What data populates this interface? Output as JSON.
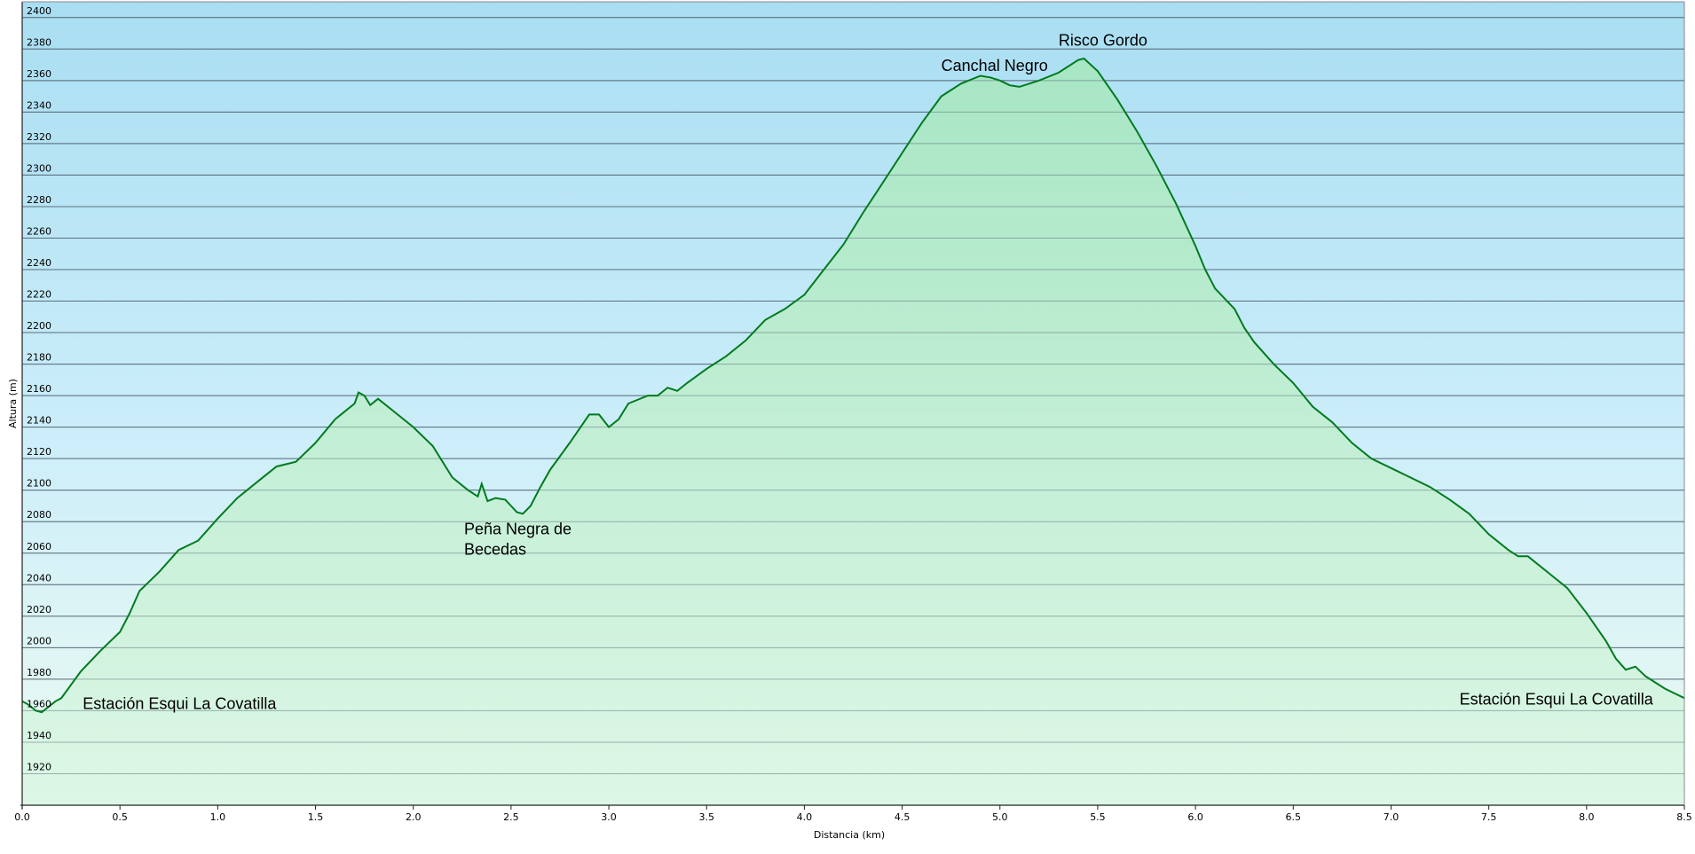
{
  "chart_data": {
    "type": "area",
    "title": "",
    "xlabel": "Distancia  (km)",
    "ylabel": "Altura (m)",
    "xlim": [
      0,
      8.5
    ],
    "ylim": [
      1900,
      2410
    ],
    "x_ticks": [
      0.0,
      0.5,
      1.0,
      1.5,
      2.0,
      2.5,
      3.0,
      3.5,
      4.0,
      4.5,
      5.0,
      5.5,
      6.0,
      6.5,
      7.0,
      7.5,
      8.0,
      8.5
    ],
    "x_tick_labels": [
      "0.0",
      "0.5",
      "1.0",
      "1.5",
      "2.0",
      "2.5",
      "3.0",
      "3.5",
      "4.0",
      "4.5",
      "5.0",
      "5.5",
      "6.0",
      "6.5",
      "7.0",
      "7.5",
      "8.0",
      "8.5"
    ],
    "y_ticks": [
      1920,
      1940,
      1960,
      1980,
      2000,
      2020,
      2040,
      2060,
      2080,
      2100,
      2120,
      2140,
      2160,
      2180,
      2200,
      2220,
      2240,
      2260,
      2280,
      2300,
      2320,
      2340,
      2360,
      2380,
      2400
    ],
    "y_tick_labels": [
      "1920",
      "1940",
      "1960",
      "1980",
      "2000",
      "2020",
      "2040",
      "2060",
      "2080",
      "2100",
      "2120",
      "2140",
      "2160",
      "2180",
      "2200",
      "2220",
      "2240",
      "2260",
      "2280",
      "2300",
      "2320",
      "2340",
      "2360",
      "2380",
      "2400"
    ],
    "grid": true,
    "colors": {
      "line": "#007a1e",
      "fill": "#aee8c6",
      "bg_top": "#aee2f4",
      "bg_bottom": "#e9fbf0",
      "grid": "#4a5a68"
    },
    "series": [
      {
        "x": [
          0.0,
          0.03,
          0.07,
          0.1,
          0.13,
          0.17,
          0.2,
          0.3,
          0.4,
          0.5,
          0.55,
          0.6,
          0.7,
          0.8,
          0.9,
          1.0,
          1.1,
          1.2,
          1.3,
          1.4,
          1.5,
          1.6,
          1.7,
          1.72,
          1.75,
          1.78,
          1.82,
          1.9,
          2.0,
          2.1,
          2.2,
          2.28,
          2.33,
          2.35,
          2.38,
          2.42,
          2.47,
          2.5,
          2.53,
          2.56,
          2.6,
          2.65,
          2.7,
          2.8,
          2.9,
          2.95,
          3.0,
          3.05,
          3.1,
          3.2,
          3.25,
          3.3,
          3.35,
          3.4,
          3.5,
          3.6,
          3.7,
          3.8,
          3.9,
          4.0,
          4.1,
          4.2,
          4.3,
          4.4,
          4.5,
          4.6,
          4.7,
          4.8,
          4.9,
          4.95,
          5.0,
          5.05,
          5.1,
          5.2,
          5.3,
          5.4,
          5.43,
          5.5,
          5.6,
          5.7,
          5.8,
          5.9,
          6.0,
          6.05,
          6.1,
          6.2,
          6.25,
          6.3,
          6.4,
          6.5,
          6.6,
          6.7,
          6.8,
          6.9,
          7.0,
          7.1,
          7.2,
          7.3,
          7.4,
          7.5,
          7.6,
          7.65,
          7.7,
          7.8,
          7.9,
          8.0,
          8.1,
          8.15,
          8.2,
          8.25,
          8.3,
          8.35,
          8.4,
          8.45,
          8.5
        ],
        "y": [
          1966,
          1964,
          1960,
          1959,
          1962,
          1966,
          1968,
          1985,
          1998,
          2010,
          2022,
          2036,
          2048,
          2062,
          2068,
          2082,
          2095,
          2105,
          2115,
          2118,
          2130,
          2145,
          2155,
          2162,
          2160,
          2154,
          2158,
          2150,
          2140,
          2128,
          2108,
          2100,
          2096,
          2104,
          2093,
          2095,
          2094,
          2090,
          2086,
          2085,
          2090,
          2102,
          2113,
          2130,
          2148,
          2148,
          2140,
          2145,
          2155,
          2160,
          2160,
          2165,
          2163,
          2168,
          2177,
          2185,
          2195,
          2208,
          2215,
          2224,
          2240,
          2256,
          2276,
          2295,
          2314,
          2333,
          2350,
          2358,
          2363,
          2362,
          2360,
          2357,
          2356,
          2360,
          2365,
          2373,
          2374,
          2366,
          2348,
          2328,
          2306,
          2282,
          2255,
          2240,
          2228,
          2215,
          2203,
          2194,
          2180,
          2168,
          2153,
          2143,
          2130,
          2120,
          2114,
          2108,
          2102,
          2094,
          2085,
          2072,
          2062,
          2058,
          2058,
          2048,
          2038,
          2022,
          2004,
          1993,
          1986,
          1988,
          1982,
          1978,
          1974,
          1971,
          1968
        ]
      }
    ]
  },
  "annotations": [
    {
      "text": "Estación Esqui La Covatilla",
      "x": 0.31,
      "y": 1961
    },
    {
      "text": "Peña Negra de",
      "x": 2.26,
      "y": 2072
    },
    {
      "text": "Becedas",
      "x": 2.26,
      "y": 2059
    },
    {
      "text": "Canchal Negro",
      "x": 4.7,
      "y": 2366
    },
    {
      "text": "Risco Gordo",
      "x": 5.3,
      "y": 2382
    },
    {
      "text": "Estación Esqui La Covatilla",
      "x": 7.35,
      "y": 1964
    }
  ]
}
